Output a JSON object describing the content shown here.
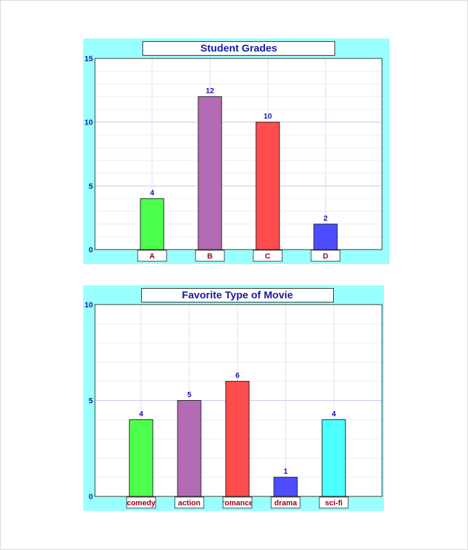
{
  "chart_data": [
    {
      "type": "bar",
      "title": "Student Grades",
      "categories": [
        "A",
        "B",
        "C",
        "D"
      ],
      "values": [
        4,
        12,
        10,
        2
      ],
      "colors": [
        "#4dff4d",
        "#b36bb3",
        "#ff4d4d",
        "#4d4dff"
      ],
      "ylim": [
        0,
        15
      ],
      "yticks": [
        0,
        5,
        10,
        15
      ],
      "grid": true,
      "legend": "none"
    },
    {
      "type": "bar",
      "title": "Favorite Type of Movie",
      "categories": [
        "comedy",
        "action",
        "romance",
        "drama",
        "sci-fi"
      ],
      "values": [
        4,
        5,
        6,
        1,
        4
      ],
      "colors": [
        "#4dff4d",
        "#b36bb3",
        "#ff4d4d",
        "#4d4dff",
        "#4dffff"
      ],
      "ylim": [
        0,
        10
      ],
      "yticks": [
        0,
        5,
        10
      ],
      "grid": true,
      "legend": "none"
    }
  ]
}
